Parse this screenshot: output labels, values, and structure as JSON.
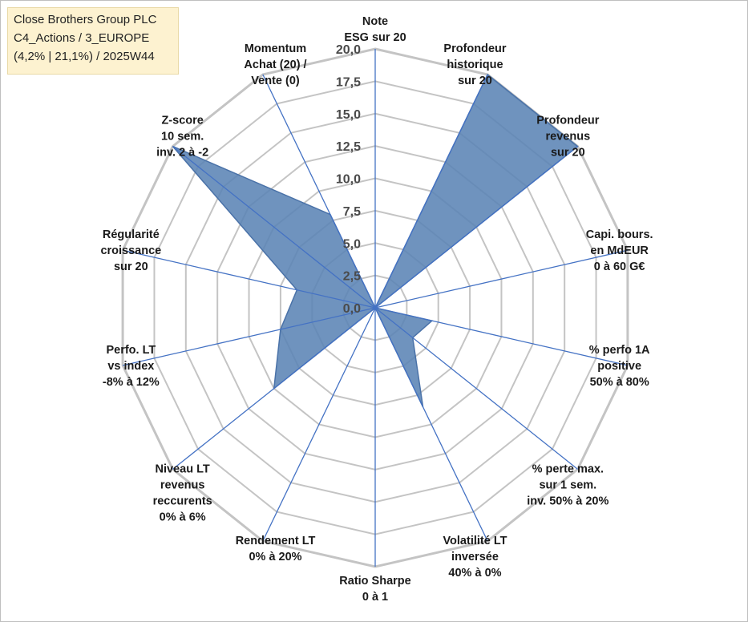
{
  "title_box": {
    "line1": "Close Brothers Group PLC",
    "line2": "C4_Actions / 3_EUROPE",
    "line3": "(4,2% | 21,1%) / 2025W44"
  },
  "chart_data": {
    "type": "radar",
    "title": "Close Brothers Group PLC",
    "rlim": [
      0,
      20
    ],
    "ticks": [
      0,
      2.5,
      5,
      7.5,
      10,
      12.5,
      15,
      17.5,
      20
    ],
    "tick_labels": [
      "0,0",
      "2,5",
      "5,0",
      "7,5",
      "10,0",
      "12,5",
      "15,0",
      "17,5",
      "20,0"
    ],
    "categories": [
      [
        "Note",
        "ESG sur 20"
      ],
      [
        "Profondeur",
        "historique",
        "sur 20"
      ],
      [
        "Profondeur",
        "revenus",
        "sur 20"
      ],
      [
        "Capi. bours.",
        "en MdEUR",
        "0 à 60 G€"
      ],
      [
        "% perfo 1A",
        "positive",
        "50% à 80%"
      ],
      [
        "% perte max.",
        "sur 1 sem.",
        "inv. 50% à 20%"
      ],
      [
        "Volatilité LT",
        "inversée",
        "40% à 0%"
      ],
      [
        "Ratio Sharpe",
        "0 à 1"
      ],
      [
        "Rendement LT",
        "0% à 20%"
      ],
      [
        "Niveau LT",
        "revenus",
        "reccurents",
        "0% à 6%"
      ],
      [
        "Perfo. LT",
        "vs index",
        "-8% à 12%"
      ],
      [
        "Régularité",
        "croissance",
        "sur 20"
      ],
      [
        "Z-score",
        "10 sem.",
        "inv. 2 à -2"
      ],
      [
        "Momentum",
        "Achat (20) /",
        "Vente (0)"
      ]
    ],
    "series": [
      {
        "name": "Close Brothers Group PLC",
        "values": [
          0,
          20,
          20,
          0,
          4.5,
          3.7,
          8.5,
          0,
          0,
          10,
          7.5,
          6.2,
          20,
          8
        ],
        "color": "#5b84b5"
      }
    ],
    "grid_color": "#c4c4c4",
    "axis_color": "#4472c4",
    "grid": true
  }
}
